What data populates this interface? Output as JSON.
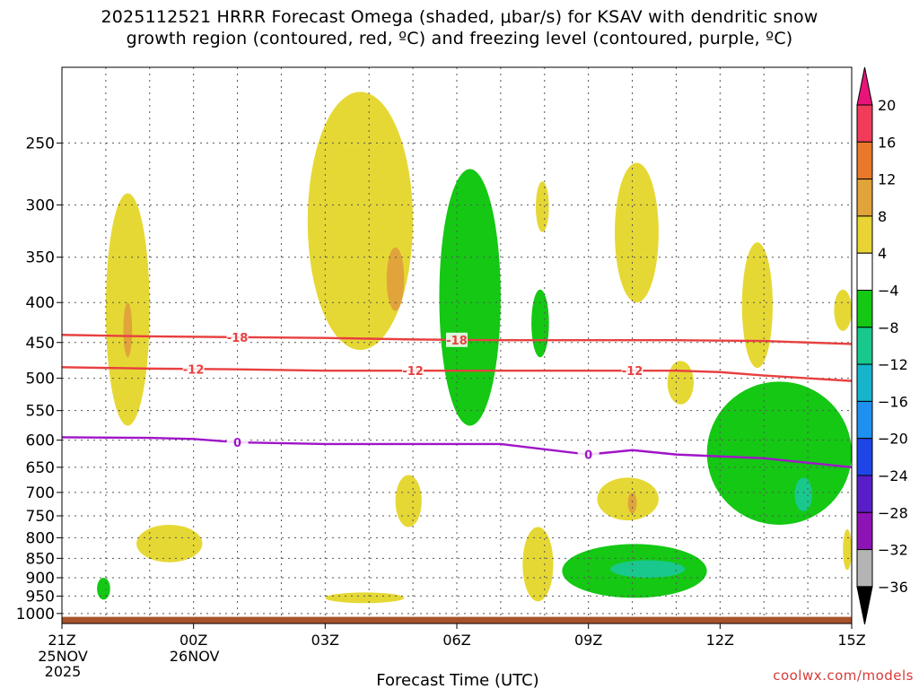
{
  "title": {
    "line1": "2025112521 HRRR Forecast Omega (shaded, μbar/s) for KSAV with dendritic snow",
    "line2": "growth region (contoured, red, ºC) and freezing level (contoured, purple, ºC)"
  },
  "credit": "coolwx.com/models",
  "chart_data": {
    "type": "time-height cross-section",
    "title": "2025112521 HRRR Forecast Omega (shaded, μbar/s) for KSAV with dendritic snow growth region (contoured, red, ºC) and freezing level (contoured, purple, ºC)",
    "xlabel": "Forecast Time (UTC)",
    "ylabel": "",
    "xlim": [
      0,
      18
    ],
    "ylim": [
      1030,
      200
    ],
    "x_ticks": [
      {
        "hour": 0,
        "label": "21Z",
        "sub": [
          "25NOV",
          "2025"
        ]
      },
      {
        "hour": 3,
        "label": "00Z",
        "sub": [
          "26NOV"
        ]
      },
      {
        "hour": 6,
        "label": "03Z",
        "sub": []
      },
      {
        "hour": 9,
        "label": "06Z",
        "sub": []
      },
      {
        "hour": 12,
        "label": "09Z",
        "sub": []
      },
      {
        "hour": 15,
        "label": "12Z",
        "sub": []
      },
      {
        "hour": 18,
        "label": "15Z",
        "sub": []
      }
    ],
    "y_ticks": [
      250,
      300,
      350,
      400,
      450,
      500,
      550,
      600,
      650,
      700,
      750,
      800,
      850,
      900,
      950,
      1000
    ],
    "colorbar": {
      "labels": [
        "20",
        "16",
        "12",
        "8",
        "4",
        "−4",
        "−8",
        "−12",
        "−16",
        "−20",
        "−24",
        "−28",
        "−32",
        "−36"
      ],
      "colors": [
        "#f03c5a",
        "#e8782a",
        "#e0a43a",
        "#e8d434",
        "#ffffff",
        "#14c814",
        "#18c88c",
        "#18b4cc",
        "#1e90f0",
        "#1e46e6",
        "#5a1ec8",
        "#8c14b4",
        "#b4b4b4"
      ],
      "top_arrow": "#e8147a",
      "bottom_arrow": "#000000"
    },
    "shaded_regions": [
      {
        "level": "4 to 8",
        "color": "#e6d834",
        "hours": [
          1.0,
          2.0
        ],
        "pressure": [
          290,
          575
        ]
      },
      {
        "level": "8 to 12",
        "color": "#e0a43a",
        "hours": [
          1.4,
          1.6
        ],
        "pressure": [
          400,
          470
        ]
      },
      {
        "level": "4 to 8",
        "color": "#e6d834",
        "hours": [
          5.6,
          8.0
        ],
        "pressure": [
          215,
          460
        ]
      },
      {
        "level": "8 to 12",
        "color": "#e0a43a",
        "hours": [
          7.4,
          7.8
        ],
        "pressure": [
          340,
          410
        ]
      },
      {
        "level": "-4 to -8",
        "color": "#14c814",
        "hours": [
          8.6,
          10.0
        ],
        "pressure": [
          270,
          575
        ]
      },
      {
        "level": "4 to 8",
        "color": "#e6d834",
        "hours": [
          10.8,
          11.1
        ],
        "pressure": [
          280,
          325
        ]
      },
      {
        "level": "-4 to -8",
        "color": "#14c814",
        "hours": [
          10.7,
          11.1
        ],
        "pressure": [
          385,
          470
        ]
      },
      {
        "level": "4 to 8",
        "color": "#e6d834",
        "hours": [
          12.6,
          13.6
        ],
        "pressure": [
          265,
          400
        ]
      },
      {
        "level": "4 to 8",
        "color": "#e6d834",
        "hours": [
          15.5,
          16.2
        ],
        "pressure": [
          335,
          485
        ]
      },
      {
        "level": "4 to 8",
        "color": "#e6d834",
        "hours": [
          13.8,
          14.4
        ],
        "pressure": [
          475,
          540
        ]
      },
      {
        "level": "4 to 8",
        "color": "#e6d834",
        "hours": [
          17.6,
          18.0
        ],
        "pressure": [
          385,
          435
        ]
      },
      {
        "level": "-4 to -8",
        "color": "#14c814",
        "hours": [
          14.7,
          18.0
        ],
        "pressure": [
          505,
          770
        ]
      },
      {
        "level": "-8 to -12",
        "color": "#18c88c",
        "hours": [
          16.7,
          17.1
        ],
        "pressure": [
          670,
          740
        ]
      },
      {
        "level": "4 to 8",
        "color": "#e6d834",
        "hours": [
          7.6,
          8.2
        ],
        "pressure": [
          665,
          775
        ]
      },
      {
        "level": "4 to 8",
        "color": "#e6d834",
        "hours": [
          12.2,
          13.6
        ],
        "pressure": [
          670,
          760
        ]
      },
      {
        "level": "8 to 12",
        "color": "#e0a43a",
        "hours": [
          12.9,
          13.1
        ],
        "pressure": [
          700,
          745
        ]
      },
      {
        "level": "4 to 8",
        "color": "#e6d834",
        "hours": [
          1.7,
          3.2
        ],
        "pressure": [
          770,
          860
        ]
      },
      {
        "level": "-4 to -8",
        "color": "#14c814",
        "hours": [
          11.4,
          14.7
        ],
        "pressure": [
          815,
          955
        ]
      },
      {
        "level": "-8 to -12",
        "color": "#18c88c",
        "hours": [
          12.5,
          14.2
        ],
        "pressure": [
          855,
          900
        ]
      },
      {
        "level": "4 to 8",
        "color": "#e6d834",
        "hours": [
          10.5,
          11.2
        ],
        "pressure": [
          775,
          965
        ]
      },
      {
        "level": "4 to 8",
        "color": "#e6d834",
        "hours": [
          6.0,
          7.8
        ],
        "pressure": [
          940,
          970
        ]
      },
      {
        "level": "-4 to -8",
        "color": "#14c814",
        "hours": [
          0.8,
          1.1
        ],
        "pressure": [
          900,
          960
        ]
      },
      {
        "level": "4 to 8",
        "color": "#e6d834",
        "hours": [
          17.8,
          18.0
        ],
        "pressure": [
          780,
          880
        ]
      }
    ],
    "contours": [
      {
        "name": "-18",
        "color": "#e84040",
        "labels_at_hours": [
          4.0,
          9.0
        ],
        "x": [
          0,
          2,
          4,
          6,
          8,
          10,
          12,
          14,
          16,
          18
        ],
        "y": [
          440,
          442,
          443,
          444,
          446,
          447,
          447,
          447,
          448,
          452
        ]
      },
      {
        "name": "-12",
        "color": "#e84040",
        "labels_at_hours": [
          3.0,
          8.0,
          13.0
        ],
        "x": [
          0,
          2,
          4,
          6,
          8,
          10,
          12,
          14,
          15,
          16,
          18
        ],
        "y": [
          484,
          486,
          487,
          489,
          489,
          489,
          489,
          489,
          491,
          496,
          504
        ]
      },
      {
        "name": "0",
        "color": "#a014c8",
        "labels_at_hours": [
          4.0,
          12.0
        ],
        "x": [
          0,
          2,
          3,
          4,
          6,
          8,
          10,
          12,
          13,
          14,
          16,
          18
        ],
        "y": [
          595,
          596,
          598,
          604,
          607,
          607,
          607,
          626,
          618,
          626,
          633,
          650
        ]
      }
    ],
    "ground": {
      "color": "#a8522a",
      "pressure_from": 1010
    }
  }
}
